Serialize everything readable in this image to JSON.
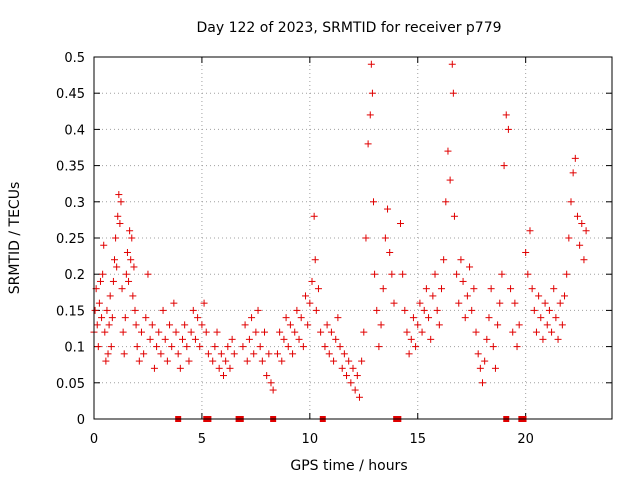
{
  "chart_data": {
    "type": "scatter",
    "title": "Day 122 of 2023, SRMTID for receiver p779",
    "xlabel": "GPS time / hours",
    "ylabel": "SRMTID / TECUs",
    "xlim": [
      0,
      24
    ],
    "ylim": [
      0,
      0.5
    ],
    "x_ticks": [
      0,
      5,
      10,
      15,
      20
    ],
    "x_tick_labels": [
      "0",
      "5",
      "10",
      "15",
      "20"
    ],
    "y_ticks": [
      0,
      0.05,
      0.1,
      0.15,
      0.2,
      0.25,
      0.3,
      0.35,
      0.4,
      0.45,
      0.5
    ],
    "y_tick_labels": [
      "0",
      "0.05",
      "0.1",
      "0.15",
      "0.2",
      "0.25",
      "0.3",
      "0.35",
      "0.4",
      "0.45",
      "0.5"
    ],
    "grid": true,
    "marker": "+",
    "color": "#e00000",
    "zero_markers_x": [
      3.9,
      5.2,
      5.3,
      6.7,
      6.8,
      8.3,
      10.6,
      14.0,
      14.1,
      19.1,
      19.8,
      19.9
    ],
    "series": [
      {
        "name": "SRMTID",
        "points": [
          [
            0.0,
            0.12
          ],
          [
            0.05,
            0.15
          ],
          [
            0.1,
            0.18
          ],
          [
            0.15,
            0.13
          ],
          [
            0.2,
            0.1
          ],
          [
            0.25,
            0.16
          ],
          [
            0.3,
            0.19
          ],
          [
            0.35,
            0.14
          ],
          [
            0.4,
            0.2
          ],
          [
            0.45,
            0.24
          ],
          [
            0.5,
            0.12
          ],
          [
            0.55,
            0.08
          ],
          [
            0.6,
            0.15
          ],
          [
            0.65,
            0.09
          ],
          [
            0.7,
            0.13
          ],
          [
            0.75,
            0.17
          ],
          [
            0.8,
            0.1
          ],
          [
            0.85,
            0.14
          ],
          [
            0.9,
            0.19
          ],
          [
            0.95,
            0.22
          ],
          [
            1.0,
            0.25
          ],
          [
            1.05,
            0.21
          ],
          [
            1.1,
            0.28
          ],
          [
            1.15,
            0.31
          ],
          [
            1.2,
            0.27
          ],
          [
            1.25,
            0.3
          ],
          [
            1.3,
            0.18
          ],
          [
            1.35,
            0.12
          ],
          [
            1.4,
            0.09
          ],
          [
            1.45,
            0.14
          ],
          [
            1.5,
            0.2
          ],
          [
            1.55,
            0.23
          ],
          [
            1.6,
            0.19
          ],
          [
            1.65,
            0.26
          ],
          [
            1.7,
            0.22
          ],
          [
            1.75,
            0.25
          ],
          [
            1.8,
            0.17
          ],
          [
            1.85,
            0.21
          ],
          [
            1.9,
            0.15
          ],
          [
            1.95,
            0.13
          ],
          [
            2.0,
            0.1
          ],
          [
            2.1,
            0.08
          ],
          [
            2.2,
            0.12
          ],
          [
            2.3,
            0.09
          ],
          [
            2.4,
            0.14
          ],
          [
            2.5,
            0.2
          ],
          [
            2.6,
            0.11
          ],
          [
            2.7,
            0.13
          ],
          [
            2.8,
            0.07
          ],
          [
            2.9,
            0.1
          ],
          [
            3.0,
            0.12
          ],
          [
            3.1,
            0.09
          ],
          [
            3.2,
            0.15
          ],
          [
            3.3,
            0.11
          ],
          [
            3.4,
            0.08
          ],
          [
            3.5,
            0.13
          ],
          [
            3.6,
            0.1
          ],
          [
            3.7,
            0.16
          ],
          [
            3.8,
            0.12
          ],
          [
            3.9,
            0.09
          ],
          [
            4.0,
            0.07
          ],
          [
            4.1,
            0.11
          ],
          [
            4.2,
            0.13
          ],
          [
            4.3,
            0.1
          ],
          [
            4.4,
            0.08
          ],
          [
            4.5,
            0.12
          ],
          [
            4.6,
            0.15
          ],
          [
            4.7,
            0.11
          ],
          [
            4.8,
            0.14
          ],
          [
            4.9,
            0.1
          ],
          [
            5.0,
            0.13
          ],
          [
            5.1,
            0.16
          ],
          [
            5.2,
            0.12
          ],
          [
            5.3,
            0.09
          ],
          [
            5.5,
            0.08
          ],
          [
            5.6,
            0.1
          ],
          [
            5.7,
            0.12
          ],
          [
            5.8,
            0.07
          ],
          [
            5.9,
            0.09
          ],
          [
            6.0,
            0.06
          ],
          [
            6.1,
            0.08
          ],
          [
            6.2,
            0.1
          ],
          [
            6.3,
            0.07
          ],
          [
            6.4,
            0.11
          ],
          [
            6.5,
            0.09
          ],
          [
            6.9,
            0.1
          ],
          [
            7.0,
            0.13
          ],
          [
            7.1,
            0.08
          ],
          [
            7.2,
            0.11
          ],
          [
            7.3,
            0.14
          ],
          [
            7.4,
            0.09
          ],
          [
            7.5,
            0.12
          ],
          [
            7.6,
            0.15
          ],
          [
            7.7,
            0.1
          ],
          [
            7.8,
            0.08
          ],
          [
            7.9,
            0.12
          ],
          [
            8.0,
            0.06
          ],
          [
            8.1,
            0.09
          ],
          [
            8.2,
            0.05
          ],
          [
            8.3,
            0.04
          ],
          [
            8.5,
            0.09
          ],
          [
            8.6,
            0.12
          ],
          [
            8.7,
            0.08
          ],
          [
            8.8,
            0.11
          ],
          [
            8.9,
            0.14
          ],
          [
            9.0,
            0.1
          ],
          [
            9.1,
            0.13
          ],
          [
            9.2,
            0.09
          ],
          [
            9.3,
            0.12
          ],
          [
            9.4,
            0.15
          ],
          [
            9.5,
            0.11
          ],
          [
            9.6,
            0.14
          ],
          [
            9.7,
            0.1
          ],
          [
            9.8,
            0.17
          ],
          [
            9.9,
            0.13
          ],
          [
            10.0,
            0.16
          ],
          [
            10.1,
            0.19
          ],
          [
            10.2,
            0.28
          ],
          [
            10.25,
            0.22
          ],
          [
            10.3,
            0.15
          ],
          [
            10.4,
            0.18
          ],
          [
            10.5,
            0.12
          ],
          [
            10.7,
            0.1
          ],
          [
            10.8,
            0.13
          ],
          [
            10.9,
            0.09
          ],
          [
            11.0,
            0.12
          ],
          [
            11.1,
            0.08
          ],
          [
            11.2,
            0.11
          ],
          [
            11.3,
            0.14
          ],
          [
            11.4,
            0.1
          ],
          [
            11.5,
            0.07
          ],
          [
            11.6,
            0.09
          ],
          [
            11.7,
            0.06
          ],
          [
            11.8,
            0.08
          ],
          [
            11.9,
            0.05
          ],
          [
            12.0,
            0.07
          ],
          [
            12.1,
            0.04
          ],
          [
            12.2,
            0.06
          ],
          [
            12.3,
            0.03
          ],
          [
            12.4,
            0.08
          ],
          [
            12.5,
            0.12
          ],
          [
            12.6,
            0.25
          ],
          [
            12.7,
            0.38
          ],
          [
            12.8,
            0.42
          ],
          [
            12.85,
            0.49
          ],
          [
            12.9,
            0.45
          ],
          [
            12.95,
            0.3
          ],
          [
            13.0,
            0.2
          ],
          [
            13.1,
            0.15
          ],
          [
            13.2,
            0.1
          ],
          [
            13.3,
            0.13
          ],
          [
            13.4,
            0.18
          ],
          [
            13.5,
            0.25
          ],
          [
            13.6,
            0.29
          ],
          [
            13.7,
            0.23
          ],
          [
            13.8,
            0.2
          ],
          [
            13.9,
            0.16
          ],
          [
            14.2,
            0.27
          ],
          [
            14.3,
            0.2
          ],
          [
            14.4,
            0.15
          ],
          [
            14.5,
            0.12
          ],
          [
            14.6,
            0.09
          ],
          [
            14.7,
            0.11
          ],
          [
            14.8,
            0.14
          ],
          [
            14.9,
            0.1
          ],
          [
            15.0,
            0.13
          ],
          [
            15.1,
            0.16
          ],
          [
            15.2,
            0.12
          ],
          [
            15.3,
            0.15
          ],
          [
            15.4,
            0.18
          ],
          [
            15.5,
            0.14
          ],
          [
            15.6,
            0.11
          ],
          [
            15.7,
            0.17
          ],
          [
            15.8,
            0.2
          ],
          [
            15.9,
            0.15
          ],
          [
            16.0,
            0.13
          ],
          [
            16.1,
            0.18
          ],
          [
            16.2,
            0.22
          ],
          [
            16.3,
            0.3
          ],
          [
            16.4,
            0.37
          ],
          [
            16.5,
            0.33
          ],
          [
            16.6,
            0.49
          ],
          [
            16.65,
            0.45
          ],
          [
            16.7,
            0.28
          ],
          [
            16.8,
            0.2
          ],
          [
            16.9,
            0.16
          ],
          [
            17.0,
            0.22
          ],
          [
            17.1,
            0.19
          ],
          [
            17.2,
            0.14
          ],
          [
            17.3,
            0.17
          ],
          [
            17.4,
            0.21
          ],
          [
            17.5,
            0.15
          ],
          [
            17.6,
            0.18
          ],
          [
            17.7,
            0.12
          ],
          [
            17.8,
            0.09
          ],
          [
            17.9,
            0.07
          ],
          [
            18.0,
            0.05
          ],
          [
            18.1,
            0.08
          ],
          [
            18.2,
            0.11
          ],
          [
            18.3,
            0.14
          ],
          [
            18.4,
            0.18
          ],
          [
            18.5,
            0.1
          ],
          [
            18.6,
            0.07
          ],
          [
            18.7,
            0.13
          ],
          [
            18.8,
            0.16
          ],
          [
            18.9,
            0.2
          ],
          [
            19.0,
            0.35
          ],
          [
            19.1,
            0.42
          ],
          [
            19.2,
            0.4
          ],
          [
            19.3,
            0.18
          ],
          [
            19.4,
            0.12
          ],
          [
            19.5,
            0.16
          ],
          [
            19.6,
            0.1
          ],
          [
            19.7,
            0.13
          ],
          [
            20.0,
            0.23
          ],
          [
            20.1,
            0.2
          ],
          [
            20.2,
            0.26
          ],
          [
            20.3,
            0.18
          ],
          [
            20.4,
            0.15
          ],
          [
            20.5,
            0.12
          ],
          [
            20.6,
            0.17
          ],
          [
            20.7,
            0.14
          ],
          [
            20.8,
            0.11
          ],
          [
            20.9,
            0.16
          ],
          [
            21.0,
            0.13
          ],
          [
            21.1,
            0.15
          ],
          [
            21.2,
            0.12
          ],
          [
            21.3,
            0.18
          ],
          [
            21.4,
            0.14
          ],
          [
            21.5,
            0.11
          ],
          [
            21.6,
            0.16
          ],
          [
            21.7,
            0.13
          ],
          [
            21.8,
            0.17
          ],
          [
            21.9,
            0.2
          ],
          [
            22.0,
            0.25
          ],
          [
            22.1,
            0.3
          ],
          [
            22.2,
            0.34
          ],
          [
            22.3,
            0.36
          ],
          [
            22.4,
            0.28
          ],
          [
            22.5,
            0.24
          ],
          [
            22.6,
            0.27
          ],
          [
            22.7,
            0.22
          ],
          [
            22.8,
            0.26
          ]
        ]
      }
    ]
  }
}
